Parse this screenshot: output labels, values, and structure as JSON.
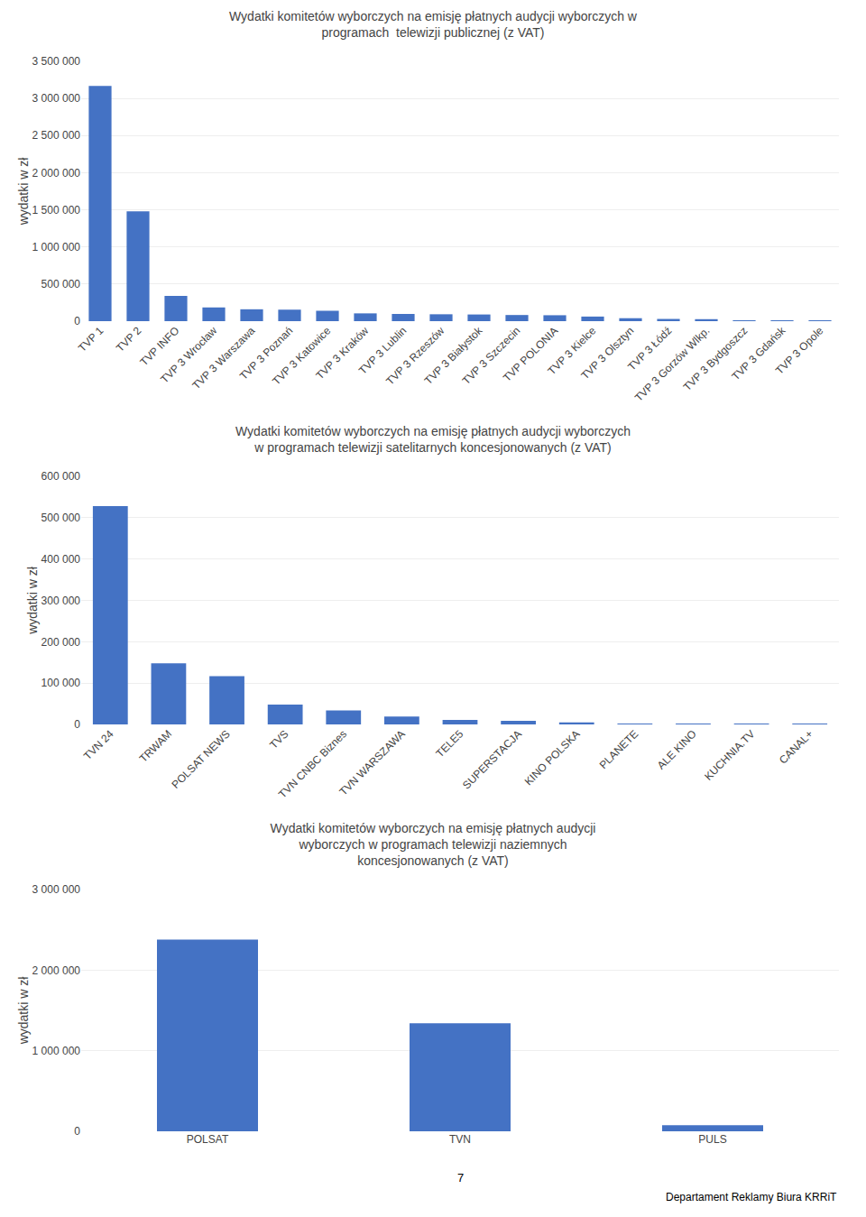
{
  "chart_data": [
    {
      "type": "bar",
      "title": "Wydatki komitetów wyborczych na emisję płatnych audycji wyborczych w\nprogramach  telewizji publicznej (z VAT)",
      "categories": [
        "TVP 1",
        "TVP 2",
        "TVP INFO",
        "TVP 3 Wrocław",
        "TVP 3 Warszawa",
        "TVP 3 Poznań",
        "TVP 3 Katowice",
        "TVP 3 Kraków",
        "TVP 3 Lublin",
        "TVP 3 Rzeszów",
        "TVP 3 Białystok",
        "TVP 3 Szczecin",
        "TVP POLONIA",
        "TVP 3 Kielce",
        "TVP 3 Olsztyn",
        "TVP 3 Łódź",
        "TVP 3 Gorzów Wlkp.",
        "TVP 3 Bydgoszcz",
        "TVP 3 Gdańsk",
        "TVP 3 Opole"
      ],
      "values": [
        3170000,
        1480000,
        340000,
        185000,
        160000,
        155000,
        140000,
        105000,
        97000,
        93000,
        90000,
        83000,
        80000,
        62000,
        40000,
        30000,
        27000,
        12000,
        8000,
        4000
      ],
      "ylabel": "wydatki w zł",
      "ylim": [
        0,
        3500000
      ],
      "yticks": [
        0,
        {
          "value": 500000,
          "label": "500 000"
        },
        {
          "value": 1000000,
          "label": "1 000 000"
        },
        {
          "value": 1500000,
          "label": "1 500 000"
        },
        {
          "value": 2000000,
          "label": "2 000 000"
        },
        {
          "value": 2500000,
          "label": "2 500 000"
        },
        {
          "value": 3000000,
          "label": "3 000 000"
        },
        {
          "value": 3500000,
          "label": "3 500 000"
        }
      ],
      "color": "#4472C4",
      "grid": true
    },
    {
      "type": "bar",
      "title": "Wydatki komitetów wyborczych na emisję płatnych audycji wyborczych\nw programach telewizji satelitarnych koncesjonowanych (z VAT)",
      "categories": [
        "TVN 24",
        "TRWAM",
        "POLSAT NEWS",
        "TVS",
        "TVN CNBC Biznes",
        "TVN WARSZAWA",
        "TELE5",
        "SUPERSTACJA",
        "KINO POLSKA",
        "PLANETE",
        "ALE KINO",
        "KUCHNIA.TV",
        "CANAL+"
      ],
      "values": [
        528000,
        148000,
        117000,
        48000,
        34000,
        19000,
        11000,
        9000,
        5000,
        1500,
        800,
        500,
        200
      ],
      "ylabel": "wydatki w zł",
      "ylim": [
        0,
        600000
      ],
      "yticks": [
        0,
        {
          "value": 100000,
          "label": "100 000"
        },
        {
          "value": 200000,
          "label": "200 000"
        },
        {
          "value": 300000,
          "label": "300 000"
        },
        {
          "value": 400000,
          "label": "400 000"
        },
        {
          "value": 500000,
          "label": "500 000"
        },
        {
          "value": 600000,
          "label": "600 000"
        }
      ],
      "color": "#4472C4",
      "grid": true
    },
    {
      "type": "bar",
      "title": "Wydatki komitetów wyborczych na emisję płatnych audycji\nwyborczych w programach telewizji naziemnych\nkoncesjonowanych (z VAT)",
      "categories": [
        "POLSAT",
        "TVN",
        "PULS"
      ],
      "values": [
        2380000,
        1340000,
        75000
      ],
      "ylabel": "wydatki w zł",
      "ylim": [
        0,
        3000000
      ],
      "yticks": [
        0,
        {
          "value": 1000000,
          "label": "1 000 000"
        },
        {
          "value": 2000000,
          "label": "2 000 000"
        },
        {
          "value": 3000000,
          "label": "3 000 000"
        }
      ],
      "color": "#4472C4",
      "grid": true
    }
  ],
  "annotations": [
    "7",
    "Departament Reklamy Biura KRRiT"
  ]
}
